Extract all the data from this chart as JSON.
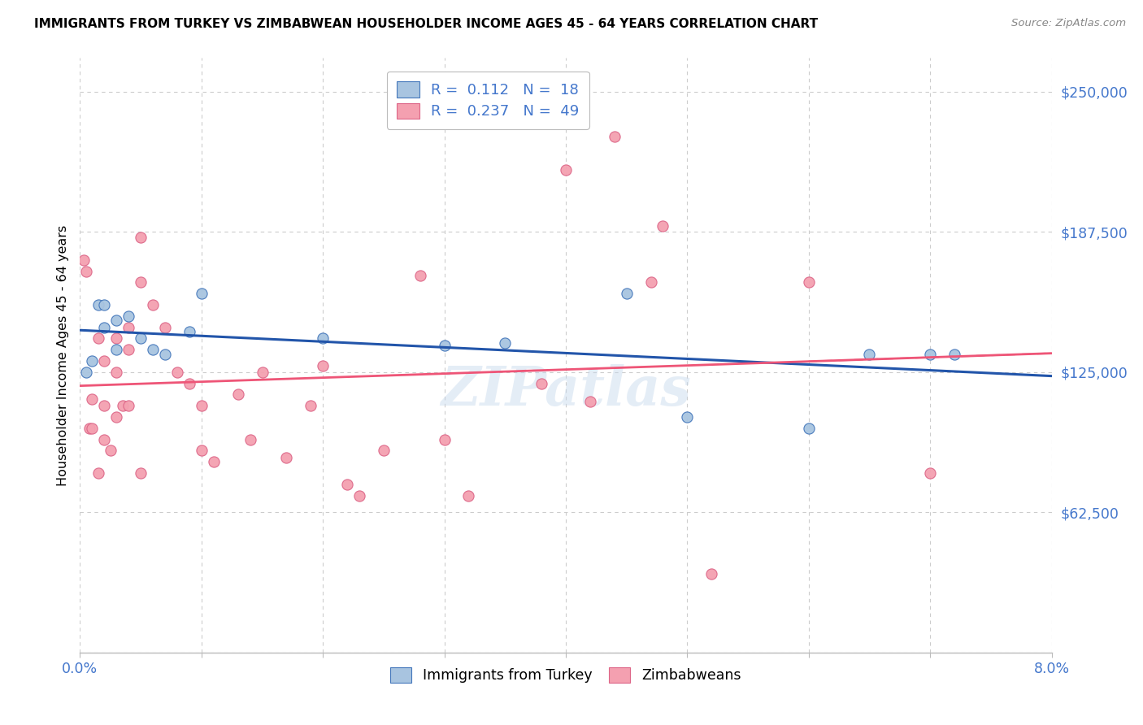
{
  "title": "IMMIGRANTS FROM TURKEY VS ZIMBABWEAN HOUSEHOLDER INCOME AGES 45 - 64 YEARS CORRELATION CHART",
  "source": "Source: ZipAtlas.com",
  "ylabel": "Householder Income Ages 45 - 64 years",
  "xlim": [
    0.0,
    0.08
  ],
  "ylim": [
    0,
    265000
  ],
  "yticks": [
    0,
    62500,
    125000,
    187500,
    250000
  ],
  "ytick_labels": [
    "",
    "$62,500",
    "$125,000",
    "$187,500",
    "$250,000"
  ],
  "xticks": [
    0.0,
    0.01,
    0.02,
    0.03,
    0.04,
    0.05,
    0.06,
    0.07,
    0.08
  ],
  "xtick_labels": [
    "0.0%",
    "",
    "",
    "",
    "",
    "",
    "",
    "",
    "8.0%"
  ],
  "watermark": "ZIPatlas",
  "blue_fill": "#A8C4E0",
  "pink_fill": "#F4A0B0",
  "blue_edge": "#4477BB",
  "pink_edge": "#DD6688",
  "line_blue_color": "#2255AA",
  "line_pink_color": "#EE5577",
  "axis_color": "#4477CC",
  "grid_color": "#CCCCCC",
  "turkey_x": [
    0.0005,
    0.001,
    0.0015,
    0.002,
    0.002,
    0.003,
    0.003,
    0.004,
    0.005,
    0.006,
    0.007,
    0.009,
    0.01,
    0.02,
    0.03,
    0.035,
    0.045,
    0.05,
    0.06,
    0.065,
    0.07,
    0.072
  ],
  "turkey_y": [
    125000,
    130000,
    155000,
    155000,
    145000,
    148000,
    135000,
    150000,
    140000,
    135000,
    133000,
    143000,
    160000,
    140000,
    137000,
    138000,
    160000,
    105000,
    100000,
    133000,
    133000,
    133000
  ],
  "zimbabwe_x": [
    0.0003,
    0.0005,
    0.0008,
    0.001,
    0.001,
    0.0015,
    0.0015,
    0.002,
    0.002,
    0.002,
    0.0025,
    0.003,
    0.003,
    0.003,
    0.0035,
    0.004,
    0.004,
    0.004,
    0.005,
    0.005,
    0.005,
    0.006,
    0.007,
    0.008,
    0.009,
    0.01,
    0.01,
    0.011,
    0.013,
    0.014,
    0.015,
    0.017,
    0.019,
    0.02,
    0.022,
    0.023,
    0.025,
    0.028,
    0.03,
    0.032,
    0.038,
    0.04,
    0.042,
    0.044,
    0.047,
    0.048,
    0.052,
    0.06,
    0.07
  ],
  "zimbabwe_y": [
    175000,
    170000,
    100000,
    113000,
    100000,
    140000,
    80000,
    130000,
    110000,
    95000,
    90000,
    140000,
    125000,
    105000,
    110000,
    145000,
    135000,
    110000,
    185000,
    165000,
    80000,
    155000,
    145000,
    125000,
    120000,
    110000,
    90000,
    85000,
    115000,
    95000,
    125000,
    87000,
    110000,
    128000,
    75000,
    70000,
    90000,
    168000,
    95000,
    70000,
    120000,
    215000,
    112000,
    230000,
    165000,
    190000,
    35000,
    165000,
    80000
  ]
}
